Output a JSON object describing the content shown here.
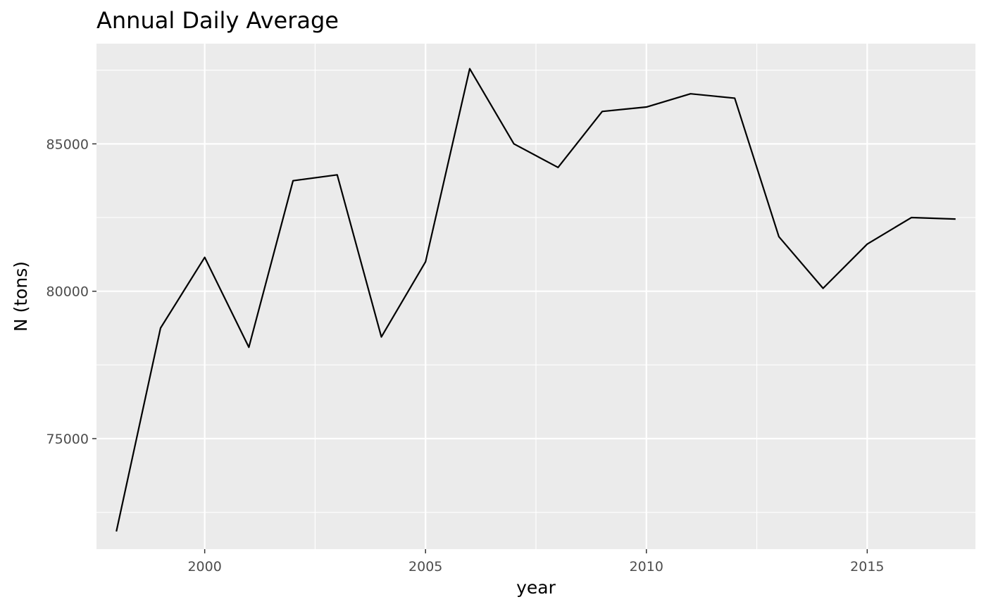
{
  "chart_data": {
    "type": "line",
    "title": "Annual Daily Average",
    "xlabel": "year",
    "ylabel": "N (tons)",
    "x": [
      1998,
      1999,
      2000,
      2001,
      2002,
      2003,
      2004,
      2005,
      2006,
      2007,
      2008,
      2009,
      2010,
      2011,
      2012,
      2013,
      2014,
      2015,
      2016,
      2017
    ],
    "series": [
      {
        "values": [
          71850,
          78750,
          81150,
          78100,
          83750,
          83950,
          78450,
          81000,
          87550,
          85000,
          84200,
          86100,
          86250,
          86700,
          86550,
          81850,
          80100,
          81600,
          82500,
          82450
        ]
      }
    ],
    "xlim": [
      1997.55,
      2017.45
    ],
    "ylim": [
      71250,
      88400
    ],
    "x_ticks": [
      2000,
      2005,
      2010,
      2015
    ],
    "x_tick_labels": [
      "2000",
      "2005",
      "2010",
      "2015"
    ],
    "y_ticks": [
      75000,
      80000,
      85000
    ],
    "y_tick_labels": [
      "75000",
      "80000",
      "85000"
    ],
    "x_minor_ticks": [
      1997.5,
      2002.5,
      2007.5,
      2012.5,
      2017.5
    ],
    "y_minor_ticks": [
      72500,
      77500,
      82500,
      87500
    ],
    "grid": true,
    "panel_background": "#ebebeb",
    "line_color": "#000000",
    "legend": "none"
  }
}
